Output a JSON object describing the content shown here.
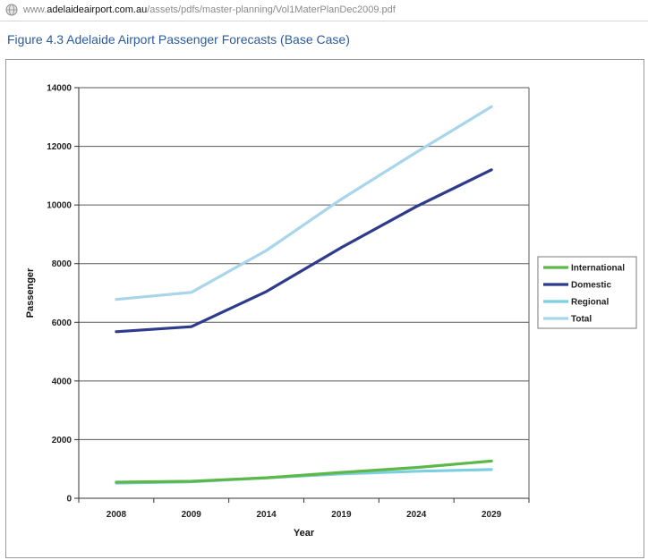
{
  "browser": {
    "url_prefix": "www.",
    "url_domain": "adelaideairport.com.au",
    "url_path": "/assets/pdfs/master-planning/Vol1MaterPlanDec2009.pdf"
  },
  "figure": {
    "title": "Figure 4.3  Adelaide Airport Passenger Forecasts (Base Case)"
  },
  "chart_data": {
    "type": "line",
    "xlabel": "Year",
    "ylabel": "Passenger",
    "categories": [
      "2008",
      "2009",
      "2014",
      "2019",
      "2024",
      "2029"
    ],
    "ylim": [
      0,
      14000
    ],
    "yticks": [
      0,
      2000,
      4000,
      6000,
      8000,
      10000,
      12000,
      14000
    ],
    "grid": true,
    "legend_position": "right",
    "series": [
      {
        "name": "International",
        "color": "#5db84a",
        "values": [
          550,
          580,
          700,
          880,
          1050,
          1270
        ]
      },
      {
        "name": "Domestic",
        "color": "#2e3b8c",
        "values": [
          5680,
          5850,
          7050,
          8550,
          9950,
          11200
        ]
      },
      {
        "name": "Regional",
        "color": "#7ccfe0",
        "values": [
          520,
          560,
          700,
          830,
          920,
          980
        ]
      },
      {
        "name": "Total",
        "color": "#a9d5ea",
        "values": [
          6780,
          7020,
          8450,
          10200,
          11800,
          13350
        ]
      }
    ]
  }
}
